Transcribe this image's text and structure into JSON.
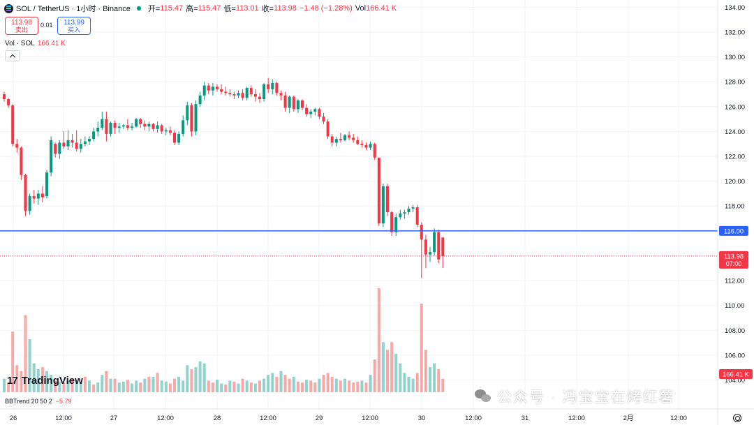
{
  "header": {
    "symbol_title": "SOL / TetherUS · 1小时 · Binance",
    "open_label": "开=",
    "open_value": "115.47",
    "high_label": "高=",
    "high_value": "115.47",
    "low_label": "低=",
    "low_value": "113.01",
    "close_label": "收=",
    "close_value": "113.98",
    "change_value": "−1.48 (−1.28%)",
    "vol_label": "Vol",
    "vol_value": "166.41 K"
  },
  "trade": {
    "sell_price": "113.98",
    "sell_label": "卖出",
    "spread": "0.01",
    "buy_price": "113.99",
    "buy_label": "买入"
  },
  "volume_legend": {
    "label": "Vol · SOL",
    "value": "166.41 K"
  },
  "bbtrend_legend": {
    "label": "BBTrend 20 50 2",
    "value": "−5.79"
  },
  "branding": {
    "logo_text": "TradingView"
  },
  "watermark": {
    "text": "公众号 · 冯宝宝在烤红薯"
  },
  "colors": {
    "up": "#089981",
    "down": "#f23645",
    "up_vol": "#92d2cc",
    "down_vol": "#f7a9a7",
    "hline": "#2962ff"
  },
  "chart_data": {
    "type": "candlestick",
    "price_axis_ticks": [
      "134.00",
      "132.00",
      "130.00",
      "128.00",
      "126.00",
      "124.00",
      "122.00",
      "120.00",
      "118.00",
      "116.00",
      "114.00",
      "112.00",
      "110.00",
      "108.00",
      "106.00",
      "104.00"
    ],
    "time_axis_ticks": [
      "26",
      "12:00",
      "27",
      "12:00",
      "28",
      "12:00",
      "29",
      "12:00",
      "30",
      "12:00",
      "31",
      "12:00",
      "2月",
      "12:00"
    ],
    "ylim": [
      103.3,
      134.3
    ],
    "horizontal_line": {
      "value": 116.0,
      "label": "116.00"
    },
    "last_price": {
      "value": 113.98,
      "label": "113.98",
      "countdown": "07:00"
    },
    "volume_label": "166.41 K",
    "ohlc": [
      [
        127,
        127.2,
        126.4,
        126.6
      ],
      [
        126.6,
        126.7,
        125.9,
        126.1
      ],
      [
        126.1,
        126.2,
        122.8,
        123.0
      ],
      [
        123.0,
        123.4,
        122.3,
        122.7
      ],
      [
        122.7,
        122.8,
        120.1,
        120.5
      ],
      [
        120.5,
        120.6,
        117.2,
        117.6
      ],
      [
        117.6,
        119.0,
        117.3,
        118.8
      ],
      [
        118.8,
        119.3,
        118.2,
        118.6
      ],
      [
        118.6,
        119.3,
        118.1,
        119.0
      ],
      [
        119.0,
        119.6,
        118.3,
        118.7
      ],
      [
        118.8,
        120.9,
        118.6,
        120.7
      ],
      [
        120.7,
        123.6,
        120.4,
        123.3
      ],
      [
        123.0,
        123.1,
        121.9,
        122.2
      ],
      [
        122.2,
        123.3,
        121.8,
        123.1
      ],
      [
        123.1,
        124.0,
        122.6,
        122.8
      ],
      [
        122.8,
        124.1,
        122.5,
        123.3
      ],
      [
        123.3,
        123.8,
        122.7,
        123.1
      ],
      [
        123.1,
        124.1,
        122.4,
        122.6
      ],
      [
        122.6,
        123.4,
        122.3,
        123.0
      ],
      [
        123.0,
        123.6,
        122.8,
        123.2
      ],
      [
        123.2,
        123.6,
        122.9,
        123.4
      ],
      [
        123.4,
        124.3,
        123.2,
        124.0
      ],
      [
        124.0,
        124.8,
        123.6,
        124.3
      ],
      [
        124.3,
        125.6,
        124.1,
        125.0
      ],
      [
        125.0,
        125.6,
        123.2,
        123.8
      ],
      [
        123.8,
        124.8,
        123.6,
        124.7
      ],
      [
        124.7,
        124.9,
        123.8,
        124.3
      ],
      [
        124.3,
        124.7,
        123.9,
        124.4
      ],
      [
        124.4,
        124.6,
        124.2,
        124.5
      ],
      [
        124.5,
        125.0,
        124.1,
        124.3
      ],
      [
        124.3,
        124.7,
        124.1,
        124.4
      ],
      [
        124.4,
        125.1,
        124.3,
        125.0
      ],
      [
        125.0,
        125.1,
        124.3,
        124.6
      ],
      [
        124.6,
        124.9,
        124.1,
        124.4
      ],
      [
        124.4,
        124.8,
        124.0,
        124.6
      ],
      [
        124.6,
        124.7,
        124.0,
        124.2
      ],
      [
        124.2,
        124.8,
        123.9,
        124.5
      ],
      [
        124.5,
        124.6,
        123.8,
        124.0
      ],
      [
        124.0,
        124.3,
        123.7,
        124.1
      ],
      [
        124.1,
        124.4,
        123.7,
        123.9
      ],
      [
        123.9,
        124.1,
        122.9,
        123.1
      ],
      [
        123.1,
        124.0,
        122.9,
        123.8
      ],
      [
        123.8,
        125.3,
        123.6,
        124.9
      ],
      [
        124.9,
        126.4,
        124.5,
        126.1
      ],
      [
        126.1,
        126.3,
        123.6,
        124.0
      ],
      [
        124.0,
        126.5,
        123.7,
        126.2
      ],
      [
        126.2,
        127.2,
        126.0,
        126.9
      ],
      [
        126.9,
        128.0,
        126.5,
        127.7
      ],
      [
        127.7,
        127.9,
        127.0,
        127.3
      ],
      [
        127.3,
        127.9,
        126.9,
        127.6
      ],
      [
        127.6,
        127.8,
        127.2,
        127.4
      ],
      [
        127.4,
        127.8,
        127.0,
        127.2
      ],
      [
        127.2,
        127.6,
        126.9,
        127.1
      ],
      [
        127.1,
        127.4,
        126.8,
        127.0
      ],
      [
        127.0,
        127.2,
        126.6,
        126.9
      ],
      [
        126.9,
        127.3,
        126.7,
        127.1
      ],
      [
        127.1,
        127.4,
        126.5,
        126.7
      ],
      [
        126.7,
        127.6,
        126.5,
        127.5
      ],
      [
        127.5,
        127.7,
        126.8,
        127.0
      ],
      [
        127.0,
        127.4,
        126.4,
        126.8
      ],
      [
        126.8,
        127.1,
        126.3,
        126.6
      ],
      [
        126.6,
        127.9,
        126.4,
        127.8
      ],
      [
        127.8,
        128.3,
        127.1,
        127.4
      ],
      [
        127.4,
        128.2,
        127.0,
        127.9
      ],
      [
        127.9,
        128.0,
        126.9,
        127.1
      ],
      [
        127.1,
        127.3,
        126.5,
        126.9
      ],
      [
        126.9,
        127.2,
        125.6,
        125.9
      ],
      [
        125.9,
        126.9,
        125.5,
        126.8
      ],
      [
        126.8,
        126.9,
        125.6,
        125.8
      ],
      [
        125.8,
        126.6,
        125.5,
        126.5
      ],
      [
        126.5,
        126.6,
        125.7,
        125.9
      ],
      [
        125.9,
        126.2,
        125.2,
        125.4
      ],
      [
        125.4,
        125.8,
        125.1,
        125.6
      ],
      [
        125.6,
        125.9,
        125.3,
        125.8
      ],
      [
        125.8,
        125.9,
        125.0,
        125.2
      ],
      [
        125.2,
        125.5,
        124.6,
        124.8
      ],
      [
        124.8,
        125.0,
        123.4,
        123.6
      ],
      [
        123.6,
        123.8,
        122.8,
        123.1
      ],
      [
        123.1,
        123.6,
        122.8,
        123.4
      ],
      [
        123.4,
        123.9,
        123.1,
        123.3
      ],
      [
        123.3,
        123.8,
        123.2,
        123.7
      ],
      [
        123.7,
        124.0,
        123.3,
        123.5
      ],
      [
        123.5,
        123.8,
        123.1,
        123.3
      ],
      [
        123.3,
        123.6,
        122.9,
        123.0
      ],
      [
        123.0,
        123.3,
        122.7,
        122.9
      ],
      [
        122.9,
        123.1,
        122.5,
        122.7
      ],
      [
        122.7,
        123.2,
        122.5,
        123.0
      ],
      [
        123.0,
        123.1,
        121.7,
        121.9
      ],
      [
        121.9,
        121.9,
        116.4,
        116.6
      ],
      [
        116.6,
        119.8,
        116.3,
        119.6
      ],
      [
        119.6,
        119.8,
        117.2,
        117.5
      ],
      [
        117.5,
        117.6,
        115.6,
        115.9
      ],
      [
        115.9,
        117.4,
        115.6,
        117.1
      ],
      [
        117.1,
        117.7,
        116.9,
        117.4
      ],
      [
        117.4,
        117.7,
        117.0,
        117.5
      ],
      [
        117.5,
        118.0,
        117.3,
        117.8
      ],
      [
        117.8,
        118.1,
        117.5,
        117.9
      ],
      [
        117.9,
        118.1,
        116.3,
        116.5
      ],
      [
        116.5,
        116.7,
        112.2,
        115.3
      ],
      [
        115.3,
        115.7,
        113.0,
        114.1
      ],
      [
        114.1,
        114.7,
        113.5,
        114.3
      ],
      [
        114.3,
        116.2,
        114.0,
        115.9
      ],
      [
        115.9,
        116.1,
        113.4,
        113.7
      ],
      [
        115.47,
        115.47,
        113.01,
        113.98
      ]
    ],
    "volume": [
      [
        14,
        "up"
      ],
      [
        10,
        "down"
      ],
      [
        63,
        "down"
      ],
      [
        28,
        "down"
      ],
      [
        22,
        "down"
      ],
      [
        80,
        "down"
      ],
      [
        55,
        "up"
      ],
      [
        30,
        "up"
      ],
      [
        24,
        "up"
      ],
      [
        26,
        "down"
      ],
      [
        22,
        "up"
      ],
      [
        18,
        "up"
      ],
      [
        12,
        "down"
      ],
      [
        11,
        "up"
      ],
      [
        10,
        "down"
      ],
      [
        12,
        "up"
      ],
      [
        14,
        "down"
      ],
      [
        12,
        "up"
      ],
      [
        10,
        "up"
      ],
      [
        16,
        "down"
      ],
      [
        12,
        "up"
      ],
      [
        8,
        "down"
      ],
      [
        10,
        "up"
      ],
      [
        18,
        "up"
      ],
      [
        22,
        "down"
      ],
      [
        14,
        "up"
      ],
      [
        14,
        "down"
      ],
      [
        10,
        "up"
      ],
      [
        11,
        "up"
      ],
      [
        13,
        "down"
      ],
      [
        9,
        "up"
      ],
      [
        12,
        "up"
      ],
      [
        10,
        "down"
      ],
      [
        14,
        "up"
      ],
      [
        16,
        "down"
      ],
      [
        16,
        "up"
      ],
      [
        20,
        "down"
      ],
      [
        12,
        "up"
      ],
      [
        11,
        "up"
      ],
      [
        9,
        "down"
      ],
      [
        14,
        "down"
      ],
      [
        16,
        "up"
      ],
      [
        12,
        "up"
      ],
      [
        28,
        "up"
      ],
      [
        24,
        "down"
      ],
      [
        26,
        "up"
      ],
      [
        32,
        "up"
      ],
      [
        30,
        "up"
      ],
      [
        12,
        "down"
      ],
      [
        10,
        "down"
      ],
      [
        13,
        "up"
      ],
      [
        9,
        "up"
      ],
      [
        8,
        "down"
      ],
      [
        12,
        "up"
      ],
      [
        11,
        "down"
      ],
      [
        9,
        "up"
      ],
      [
        14,
        "down"
      ],
      [
        12,
        "up"
      ],
      [
        10,
        "down"
      ],
      [
        9,
        "up"
      ],
      [
        12,
        "down"
      ],
      [
        14,
        "up"
      ],
      [
        18,
        "up"
      ],
      [
        20,
        "up"
      ],
      [
        16,
        "down"
      ],
      [
        22,
        "up"
      ],
      [
        18,
        "down"
      ],
      [
        14,
        "down"
      ],
      [
        16,
        "up"
      ],
      [
        11,
        "down"
      ],
      [
        10,
        "down"
      ],
      [
        13,
        "up"
      ],
      [
        12,
        "down"
      ],
      [
        10,
        "down"
      ],
      [
        14,
        "up"
      ],
      [
        18,
        "down"
      ],
      [
        20,
        "down"
      ],
      [
        16,
        "down"
      ],
      [
        14,
        "up"
      ],
      [
        12,
        "down"
      ],
      [
        14,
        "up"
      ],
      [
        12,
        "down"
      ],
      [
        10,
        "down"
      ],
      [
        11,
        "down"
      ],
      [
        12,
        "up"
      ],
      [
        10,
        "down"
      ],
      [
        18,
        "up"
      ],
      [
        34,
        "down"
      ],
      [
        108,
        "down"
      ],
      [
        52,
        "up"
      ],
      [
        44,
        "down"
      ],
      [
        52,
        "down"
      ],
      [
        40,
        "up"
      ],
      [
        30,
        "up"
      ],
      [
        20,
        "up"
      ],
      [
        16,
        "up"
      ],
      [
        14,
        "up"
      ],
      [
        20,
        "down"
      ],
      [
        92,
        "down"
      ],
      [
        44,
        "down"
      ],
      [
        26,
        "up"
      ],
      [
        30,
        "up"
      ],
      [
        24,
        "down"
      ],
      [
        14,
        "down"
      ]
    ]
  }
}
